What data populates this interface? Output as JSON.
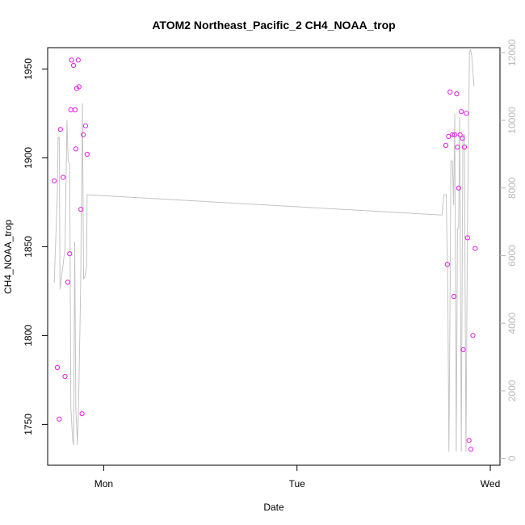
{
  "chart_data": {
    "type": "scatter",
    "title": "ATOM2 Northeast_Pacific_2 CH4_NOAA_trop",
    "xlabel": "Date",
    "ylabel": "CH4_NOAA_trop",
    "xlim": [
      -0.145,
      1.025
    ],
    "ylim": [
      1727,
      1962
    ],
    "x_ticks": [
      {
        "value": 0,
        "label": "Mon"
      },
      {
        "value": 0.5,
        "label": "Tue"
      },
      {
        "value": 1,
        "label": "Wed"
      }
    ],
    "y_ticks": [
      1750,
      1800,
      1850,
      1900,
      1950
    ],
    "y2_ticks": [
      0,
      2000,
      4000,
      6000,
      8000,
      10000,
      12000
    ],
    "y2lim": [
      -200,
      12150
    ],
    "colors": {
      "points": "#e01ee0",
      "line": "#c4c4c4",
      "right_axis": "#b8b8b8"
    },
    "series": [
      {
        "values": [
          [
            -0.128,
            1887
          ],
          [
            -0.12,
            1782
          ],
          [
            -0.115,
            1753
          ],
          [
            -0.112,
            1916
          ],
          [
            -0.105,
            1889
          ],
          [
            -0.1,
            1777
          ],
          [
            -0.093,
            1830
          ],
          [
            -0.088,
            1846
          ],
          [
            -0.085,
            1927
          ],
          [
            -0.083,
            1955
          ],
          [
            -0.078,
            1952
          ],
          [
            -0.074,
            1927
          ],
          [
            -0.072,
            1905
          ],
          [
            -0.07,
            1939
          ],
          [
            -0.066,
            1955
          ],
          [
            -0.064,
            1940
          ],
          [
            -0.059,
            1871
          ],
          [
            -0.056,
            1756
          ],
          [
            -0.053,
            1913
          ],
          [
            -0.047,
            1918
          ],
          [
            -0.043,
            1902
          ],
          [
            0.885,
            1907
          ],
          [
            0.889,
            1840
          ],
          [
            0.892,
            1912
          ],
          [
            0.896,
            1937
          ],
          [
            0.902,
            1913
          ],
          [
            0.906,
            1822
          ],
          [
            0.908,
            1913
          ],
          [
            0.913,
            1936
          ],
          [
            0.915,
            1906
          ],
          [
            0.918,
            1883
          ],
          [
            0.922,
            1913
          ],
          [
            0.925,
            1926
          ],
          [
            0.928,
            1911
          ],
          [
            0.93,
            1792
          ],
          [
            0.933,
            1906
          ],
          [
            0.938,
            1925
          ],
          [
            0.941,
            1855
          ],
          [
            0.945,
            1741
          ],
          [
            0.95,
            1736
          ],
          [
            0.955,
            1800
          ],
          [
            0.961,
            1849
          ]
        ]
      },
      {
        "axis": "right",
        "values": [
          [
            -0.128,
            5200
          ],
          [
            -0.12,
            7800
          ],
          [
            -0.118,
            9500
          ],
          [
            -0.115,
            9500
          ],
          [
            -0.113,
            5000
          ],
          [
            -0.1,
            6200
          ],
          [
            -0.095,
            10000
          ],
          [
            -0.092,
            8800
          ],
          [
            -0.088,
            8700
          ],
          [
            -0.085,
            1500
          ],
          [
            -0.08,
            500
          ],
          [
            -0.078,
            400
          ],
          [
            -0.075,
            6400
          ],
          [
            -0.072,
            1500
          ],
          [
            -0.068,
            400
          ],
          [
            -0.065,
            1600
          ],
          [
            -0.06,
            4800
          ],
          [
            -0.055,
            10500
          ],
          [
            -0.052,
            5300
          ],
          [
            -0.048,
            5400
          ],
          [
            -0.044,
            5700
          ],
          [
            -0.043,
            7800
          ],
          [
            0.875,
            7200
          ],
          [
            0.88,
            7800
          ],
          [
            0.886,
            7800
          ],
          [
            0.89,
            5000
          ],
          [
            0.893,
            200
          ],
          [
            0.896,
            5000
          ],
          [
            0.898,
            8800
          ],
          [
            0.902,
            8800
          ],
          [
            0.905,
            7500
          ],
          [
            0.908,
            10200
          ],
          [
            0.912,
            200
          ],
          [
            0.915,
            6800
          ],
          [
            0.918,
            6800
          ],
          [
            0.921,
            10100
          ],
          [
            0.925,
            200
          ],
          [
            0.929,
            9500
          ],
          [
            0.933,
            9600
          ],
          [
            0.935,
            4800
          ],
          [
            0.937,
            200
          ],
          [
            0.941,
            7000
          ],
          [
            0.944,
            9800
          ],
          [
            0.946,
            12000
          ],
          [
            0.949,
            12100
          ],
          [
            0.952,
            11900
          ],
          [
            0.954,
            11600
          ],
          [
            0.958,
            11000
          ]
        ]
      }
    ]
  }
}
